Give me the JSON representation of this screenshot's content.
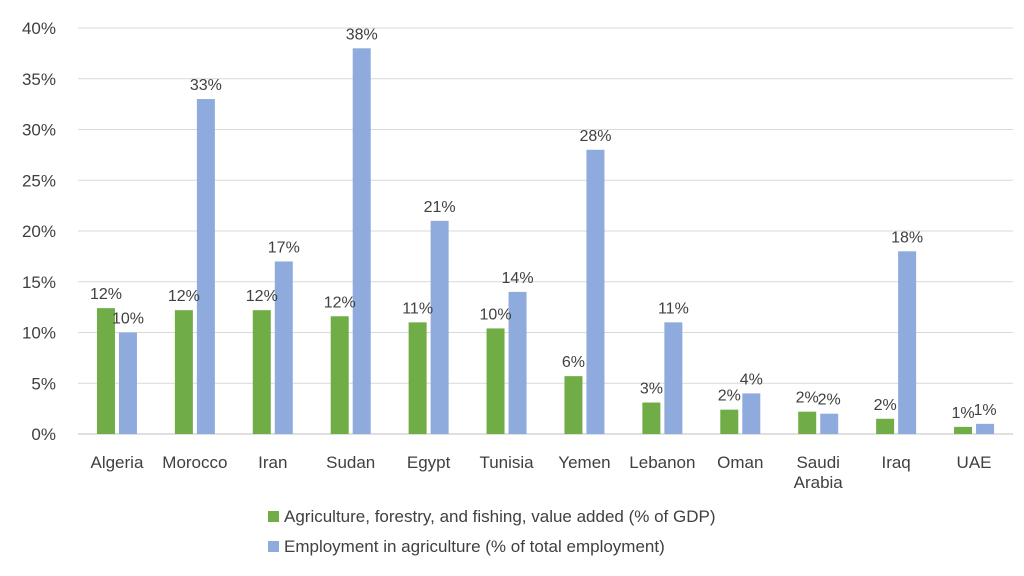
{
  "chart_data": {
    "type": "bar",
    "title": "",
    "xlabel": "",
    "ylabel": "",
    "ylim": [
      0,
      40
    ],
    "y_ticks": [
      "0%",
      "5%",
      "10%",
      "15%",
      "20%",
      "25%",
      "30%",
      "35%",
      "40%"
    ],
    "y_tick_values": [
      0,
      5,
      10,
      15,
      20,
      25,
      30,
      35,
      40
    ],
    "grid": true,
    "legend_position": "bottom",
    "categories": [
      [
        "Algeria"
      ],
      [
        "Morocco"
      ],
      [
        "Iran"
      ],
      [
        "Sudan"
      ],
      [
        "Egypt"
      ],
      [
        "Tunisia"
      ],
      [
        "Yemen"
      ],
      [
        "Lebanon"
      ],
      [
        "Oman"
      ],
      [
        "Saudi",
        "Arabia"
      ],
      [
        "Iraq"
      ],
      [
        "UAE"
      ]
    ],
    "series": [
      {
        "name": "Agriculture, forestry, and fishing, value added (% of GDP)",
        "color": "#70ad47",
        "values": [
          12.4,
          12.2,
          12.2,
          11.6,
          11.0,
          10.4,
          5.7,
          3.1,
          2.4,
          2.2,
          1.5,
          0.7
        ],
        "labels": [
          "12%",
          "12%",
          "12%",
          "12%",
          "11%",
          "10%",
          "6%",
          "3%",
          "2%",
          "2%",
          "2%",
          "1%"
        ]
      },
      {
        "name": "Employment in agriculture (% of total employment)",
        "color": "#8faadc",
        "values": [
          10,
          33,
          17,
          38,
          21,
          14,
          28,
          11,
          4,
          2,
          18,
          1
        ],
        "labels": [
          "10%",
          "33%",
          "17%",
          "38%",
          "21%",
          "14%",
          "28%",
          "11%",
          "4%",
          "2%",
          "18%",
          "1%"
        ]
      }
    ]
  }
}
